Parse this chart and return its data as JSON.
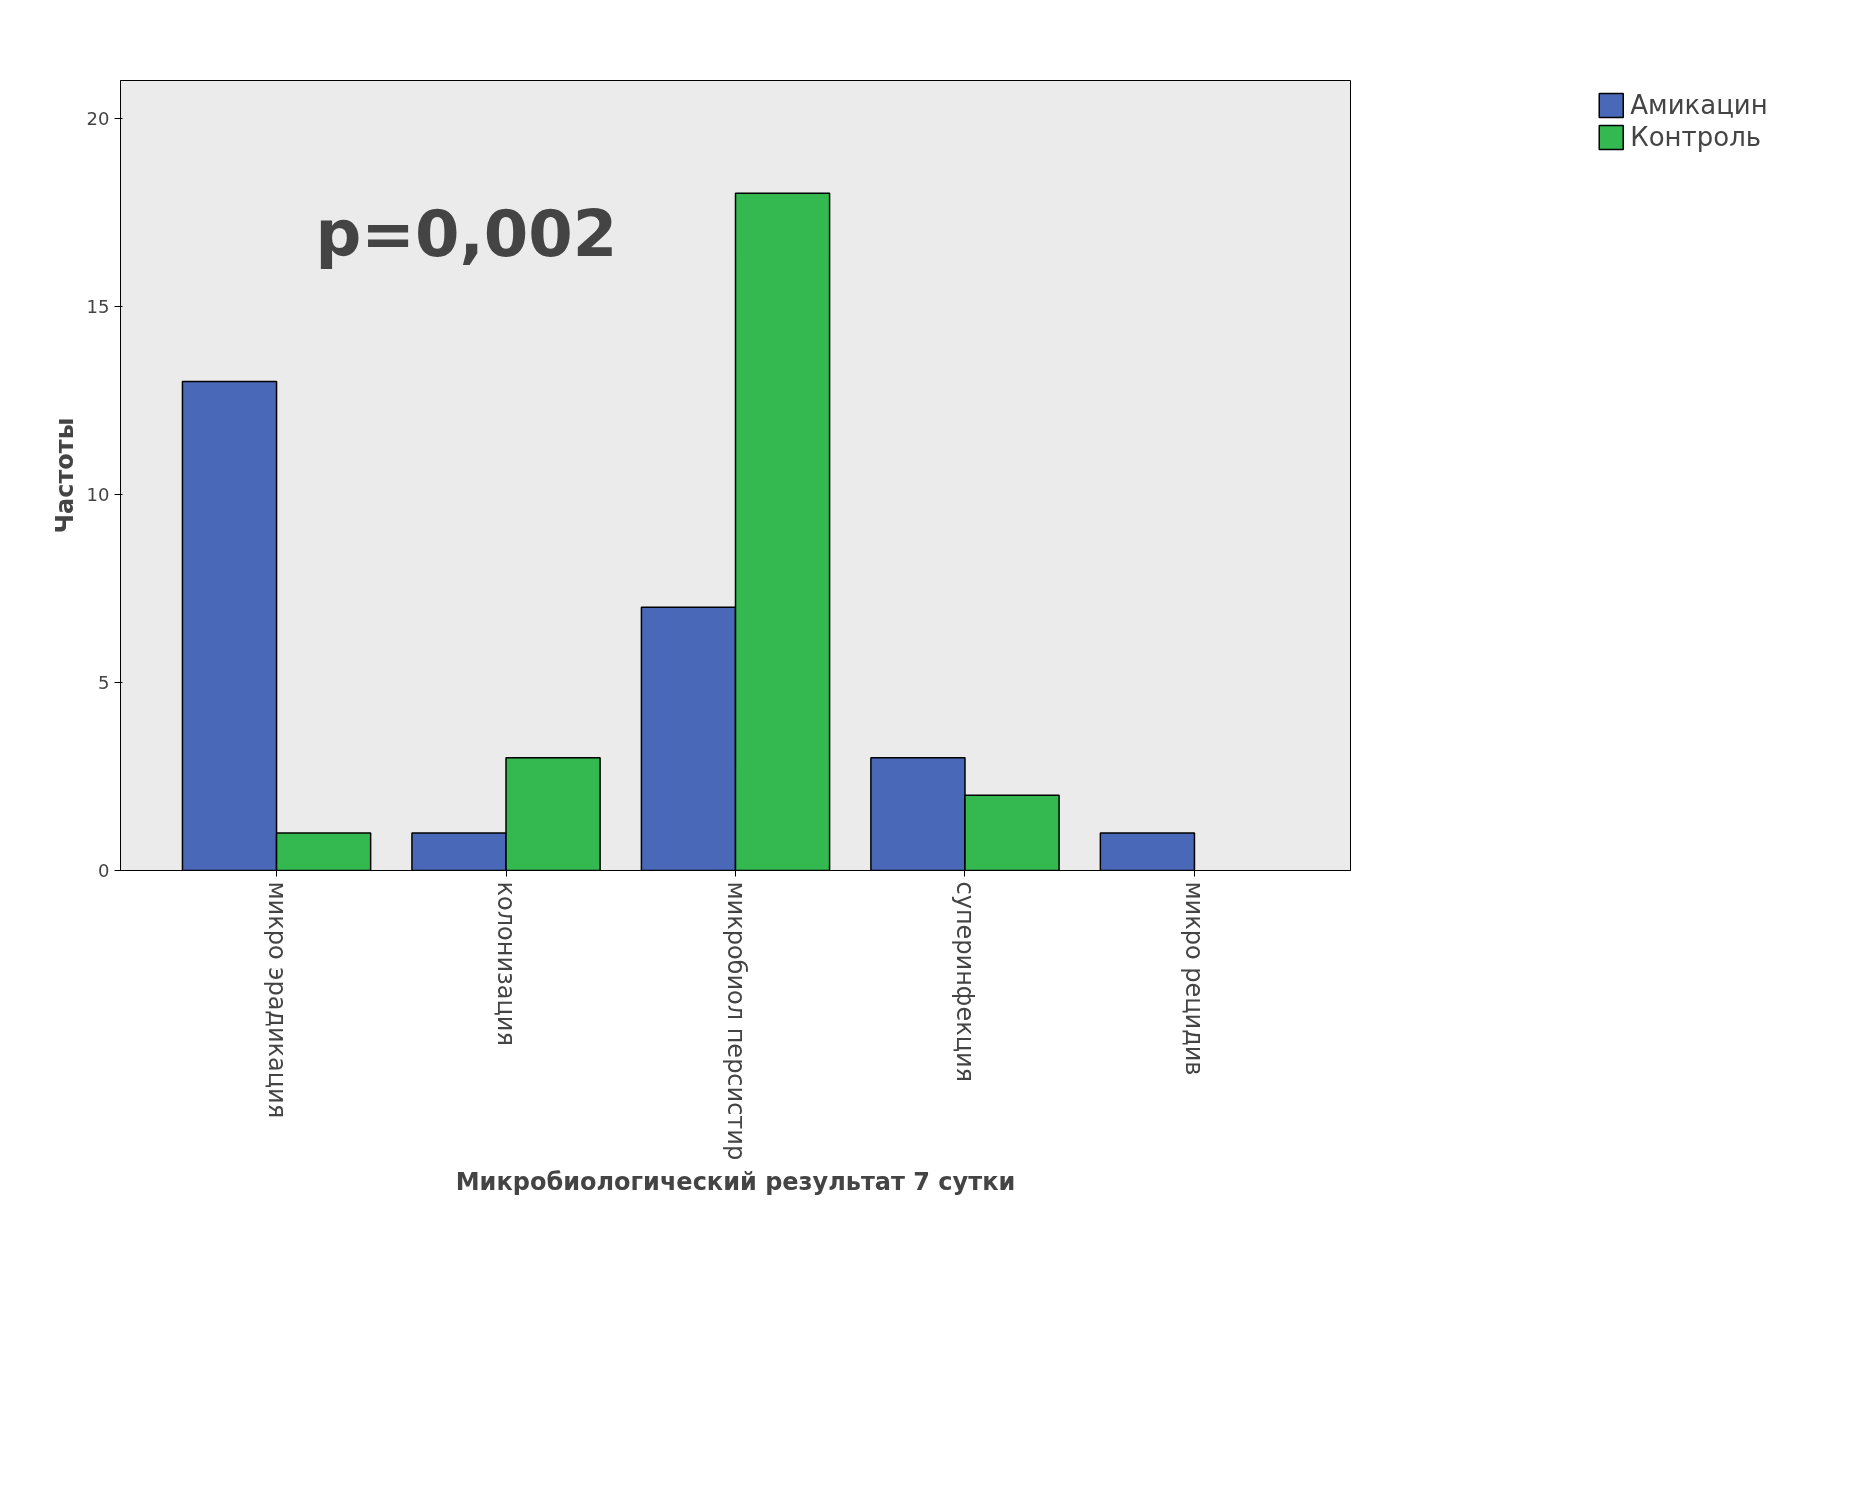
{
  "chart_data": {
    "type": "bar",
    "xlabel": "Микробиологический результат 7 сутки",
    "ylabel": "Частоты",
    "categories": [
      "микро эрадикация",
      "колонизация",
      "микробиол персистир",
      "суперинфекция",
      "микро рецидив"
    ],
    "series": [
      {
        "name": "Амикацин",
        "color": "#4a68b8",
        "values": [
          13,
          1,
          7,
          3,
          1
        ]
      },
      {
        "name": "Контроль",
        "color": "#33b94f",
        "values": [
          1,
          3,
          18,
          2,
          null
        ]
      }
    ],
    "ylim": [
      0,
      21
    ],
    "yticks": [
      0,
      5,
      10,
      15,
      20
    ],
    "grid": false,
    "legend": "right",
    "annotations": [
      "p=0,002"
    ]
  }
}
